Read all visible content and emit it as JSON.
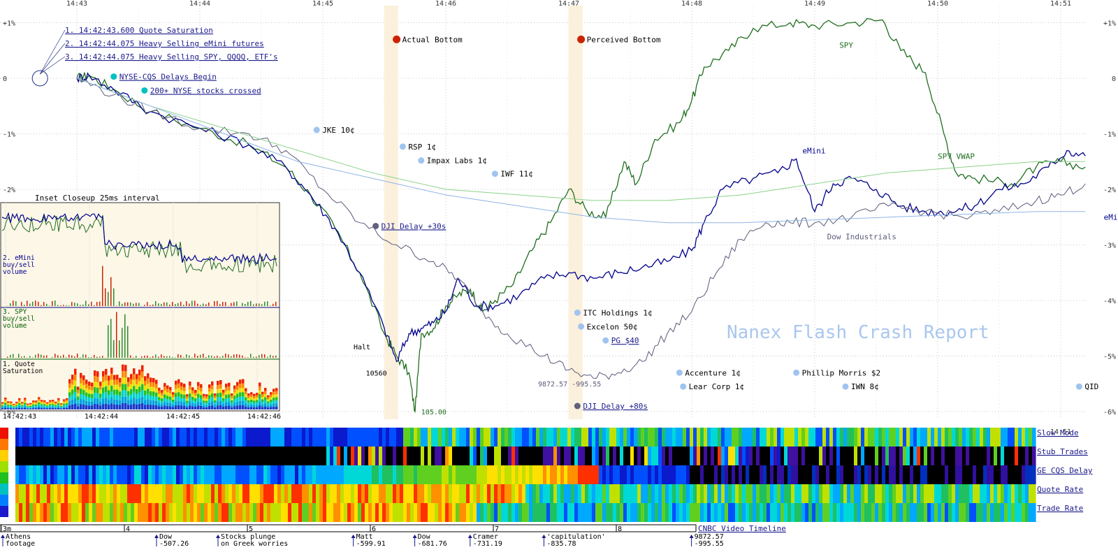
{
  "chart_data": {
    "type": "line",
    "title": "Nanex Flash Crash Report",
    "x_time_labels": [
      "14:43",
      "14:44",
      "14:45",
      "14:46",
      "14:47",
      "14:48",
      "14:49",
      "14:50",
      "14:51"
    ],
    "y_tick_labels": [
      "+1%",
      "0",
      "-1%",
      "-2%",
      "-3%",
      "-4%",
      "-5%",
      "-6%"
    ],
    "y_tick_values": [
      1,
      0,
      -1,
      -2,
      -3,
      -4,
      -5,
      -6
    ],
    "x_range_minutes": [
      0,
      8.2
    ],
    "ylim": [
      -6.1,
      1.3
    ],
    "grid": true,
    "series": [
      {
        "name": "SPY",
        "color": "#1f6e1f",
        "points": [
          [
            0,
            0
          ],
          [
            0.1,
            0.05
          ],
          [
            0.3,
            -0.2
          ],
          [
            0.6,
            -0.6
          ],
          [
            1.0,
            -0.9
          ],
          [
            1.4,
            -1.2
          ],
          [
            1.7,
            -1.6
          ],
          [
            1.9,
            -2.1
          ],
          [
            2.1,
            -2.7
          ],
          [
            2.3,
            -3.5
          ],
          [
            2.5,
            -4.6
          ],
          [
            2.6,
            -5.0
          ],
          [
            2.7,
            -5.3
          ],
          [
            2.75,
            -6.0
          ],
          [
            2.8,
            -4.6
          ],
          [
            2.9,
            -4.5
          ],
          [
            3.0,
            -4.1
          ],
          [
            3.1,
            -3.9
          ],
          [
            3.2,
            -3.8
          ],
          [
            3.3,
            -4.2
          ],
          [
            3.4,
            -4.0
          ],
          [
            3.55,
            -3.7
          ],
          [
            3.7,
            -3.1
          ],
          [
            3.85,
            -2.6
          ],
          [
            4.0,
            -2.0
          ],
          [
            4.15,
            -2.4
          ],
          [
            4.3,
            -2.5
          ],
          [
            4.45,
            -1.5
          ],
          [
            4.55,
            -1.9
          ],
          [
            4.7,
            -1.1
          ],
          [
            4.9,
            -0.8
          ],
          [
            5.0,
            -0.4
          ],
          [
            5.1,
            0.2
          ],
          [
            5.3,
            0.5
          ],
          [
            5.5,
            0.9
          ],
          [
            5.8,
            1.0
          ],
          [
            6.0,
            0.95
          ],
          [
            6.3,
            1.0
          ],
          [
            6.55,
            1.05
          ],
          [
            6.7,
            0.5
          ],
          [
            6.9,
            0.1
          ],
          [
            7.05,
            -1.0
          ],
          [
            7.15,
            -1.7
          ],
          [
            7.3,
            -1.8
          ],
          [
            7.6,
            -1.9
          ],
          [
            7.8,
            -1.6
          ],
          [
            8.0,
            -1.5
          ],
          [
            8.2,
            -1.6
          ]
        ]
      },
      {
        "name": "eMini",
        "color": "#00008b",
        "points": [
          [
            0,
            0
          ],
          [
            0.1,
            0.05
          ],
          [
            0.3,
            -0.2
          ],
          [
            0.6,
            -0.6
          ],
          [
            1.0,
            -0.9
          ],
          [
            1.4,
            -1.2
          ],
          [
            1.7,
            -1.6
          ],
          [
            1.9,
            -2.1
          ],
          [
            2.1,
            -2.7
          ],
          [
            2.3,
            -3.5
          ],
          [
            2.5,
            -4.5
          ],
          [
            2.6,
            -5.1
          ],
          [
            2.7,
            -4.6
          ],
          [
            2.8,
            -4.5
          ],
          [
            2.9,
            -4.4
          ],
          [
            3.0,
            -4.2
          ],
          [
            3.1,
            -3.6
          ],
          [
            3.25,
            -4.1
          ],
          [
            3.4,
            -4.1
          ],
          [
            3.6,
            -3.9
          ],
          [
            3.8,
            -3.6
          ],
          [
            4.0,
            -3.5
          ],
          [
            4.2,
            -3.6
          ],
          [
            4.4,
            -3.5
          ],
          [
            4.6,
            -3.4
          ],
          [
            4.8,
            -3.3
          ],
          [
            5.0,
            -3.1
          ],
          [
            5.1,
            -2.6
          ],
          [
            5.25,
            -2.0
          ],
          [
            5.5,
            -1.8
          ],
          [
            5.7,
            -1.7
          ],
          [
            5.85,
            -1.45
          ],
          [
            6.0,
            -2.4
          ],
          [
            6.15,
            -1.9
          ],
          [
            6.3,
            -1.8
          ],
          [
            6.5,
            -2.0
          ],
          [
            6.7,
            -2.3
          ],
          [
            6.9,
            -2.4
          ],
          [
            7.1,
            -2.4
          ],
          [
            7.3,
            -2.3
          ],
          [
            7.5,
            -2.0
          ],
          [
            7.7,
            -1.9
          ],
          [
            7.9,
            -1.6
          ],
          [
            8.05,
            -1.3
          ],
          [
            8.2,
            -1.4
          ]
        ]
      },
      {
        "name": "Dow Industrials",
        "color": "#5a5a7a",
        "points": [
          [
            0,
            0
          ],
          [
            0.3,
            -0.3
          ],
          [
            0.6,
            -0.6
          ],
          [
            1.0,
            -0.9
          ],
          [
            1.4,
            -1.0
          ],
          [
            1.7,
            -1.3
          ],
          [
            2.0,
            -2.0
          ],
          [
            2.3,
            -2.6
          ],
          [
            2.6,
            -3.0
          ],
          [
            2.9,
            -3.3
          ],
          [
            3.1,
            -3.6
          ],
          [
            3.3,
            -4.2
          ],
          [
            3.5,
            -4.6
          ],
          [
            3.8,
            -5.0
          ],
          [
            4.0,
            -5.25
          ],
          [
            4.2,
            -5.4
          ],
          [
            4.4,
            -5.3
          ],
          [
            4.6,
            -5.1
          ],
          [
            4.8,
            -4.6
          ],
          [
            5.0,
            -4.2
          ],
          [
            5.2,
            -3.5
          ],
          [
            5.4,
            -2.9
          ],
          [
            5.6,
            -2.6
          ],
          [
            5.8,
            -2.6
          ],
          [
            6.0,
            -2.6
          ],
          [
            6.3,
            -2.5
          ],
          [
            6.6,
            -2.3
          ],
          [
            6.9,
            -2.4
          ],
          [
            7.2,
            -2.5
          ],
          [
            7.5,
            -2.4
          ],
          [
            7.8,
            -2.2
          ],
          [
            8.0,
            -2.1
          ],
          [
            8.2,
            -1.9
          ]
        ]
      },
      {
        "name": "SPY VWAP",
        "color": "#8ad38a",
        "points": [
          [
            0,
            0
          ],
          [
            0.6,
            -0.5
          ],
          [
            1.2,
            -0.9
          ],
          [
            1.8,
            -1.3
          ],
          [
            2.4,
            -1.7
          ],
          [
            3.0,
            -2.0
          ],
          [
            3.6,
            -2.1
          ],
          [
            4.2,
            -2.2
          ],
          [
            4.8,
            -2.2
          ],
          [
            5.4,
            -2.1
          ],
          [
            6.0,
            -1.9
          ],
          [
            6.6,
            -1.7
          ],
          [
            7.2,
            -1.6
          ],
          [
            7.8,
            -1.5
          ],
          [
            8.2,
            -1.5
          ]
        ]
      },
      {
        "name": "",
        "color": "#8fb4e6",
        "points": [
          [
            0,
            0
          ],
          [
            0.6,
            -0.5
          ],
          [
            1.2,
            -1.0
          ],
          [
            1.8,
            -1.5
          ],
          [
            2.4,
            -1.8
          ],
          [
            3.0,
            -2.1
          ],
          [
            3.6,
            -2.3
          ],
          [
            4.2,
            -2.5
          ],
          [
            4.8,
            -2.6
          ],
          [
            5.4,
            -2.6
          ],
          [
            6.0,
            -2.55
          ],
          [
            6.6,
            -2.5
          ],
          [
            7.2,
            -2.45
          ],
          [
            7.8,
            -2.4
          ],
          [
            8.2,
            -2.4
          ]
        ]
      }
    ],
    "series_labels": [
      {
        "text": "SPY",
        "x": 6.2,
        "y": 0.55,
        "color": "#1f6e1f"
      },
      {
        "text": "eMini",
        "x": 5.9,
        "y": -1.35,
        "color": "#00008b"
      },
      {
        "text": "SPY VWAP",
        "x": 7.0,
        "y": -1.45,
        "color": "#1f6e1f"
      },
      {
        "text": "Dow Industrials",
        "x": 6.1,
        "y": -2.9,
        "color": "#5a5a7a"
      },
      {
        "text": "eMi",
        "x": 8.35,
        "y": -2.55,
        "color": "#00008b"
      }
    ],
    "bottom_bands": [
      {
        "x": 2.55,
        "label": "Actual Bottom"
      },
      {
        "x": 4.05,
        "label": "Perceived Bottom"
      }
    ],
    "event_links": [
      "1. 14:42:43.600 Quote Saturation",
      "2. 14:42:44.075 Heavy Selling eMini futures",
      "3. 14:42:44.075 Heavy Selling SPY, QQQQ, ETF's"
    ],
    "markers": [
      {
        "label": "Actual Bottom",
        "x": 2.6,
        "y": 0.7,
        "color": "#cc2200",
        "link": false
      },
      {
        "label": "Perceived Bottom",
        "x": 4.1,
        "y": 0.7,
        "color": "#cc2200",
        "link": false
      },
      {
        "label": "NYSE-CQS Delays Begin",
        "x": 0.3,
        "y": 0.03,
        "color": "#00c0c0",
        "link": true
      },
      {
        "label": "200+ NYSE stocks crossed",
        "x": 0.55,
        "y": -0.22,
        "color": "#00c0c0",
        "link": true
      },
      {
        "label": "JKE 10¢",
        "x": 1.95,
        "y": -0.93,
        "color": "#a0c4f0",
        "link": false
      },
      {
        "label": "RSP 1¢",
        "x": 2.65,
        "y": -1.23,
        "color": "#a0c4f0",
        "link": false
      },
      {
        "label": "Impax Labs 1¢",
        "x": 2.8,
        "y": -1.48,
        "color": "#a0c4f0",
        "link": false
      },
      {
        "label": "IWF 11¢",
        "x": 3.4,
        "y": -1.72,
        "color": "#a0c4f0",
        "link": false
      },
      {
        "label": "DJI Delay +30s",
        "x": 2.43,
        "y": -2.66,
        "color": "#606080",
        "link": true
      },
      {
        "label": "ITC Holdings 1¢",
        "x": 4.07,
        "y": -4.22,
        "color": "#a0c4f0",
        "link": false
      },
      {
        "label": "Excelon 50¢",
        "x": 4.1,
        "y": -4.47,
        "color": "#a0c4f0",
        "link": false
      },
      {
        "label": "PG $40",
        "x": 4.3,
        "y": -4.72,
        "color": "#a0c4f0",
        "link": true
      },
      {
        "label": "Accenture 1¢",
        "x": 4.9,
        "y": -5.3,
        "color": "#a0c4f0",
        "link": false
      },
      {
        "label": "Lear Corp 1¢",
        "x": 4.93,
        "y": -5.55,
        "color": "#a0c4f0",
        "link": false
      },
      {
        "label": "Phillip Morris $2",
        "x": 5.85,
        "y": -5.3,
        "color": "#a0c4f0",
        "link": false
      },
      {
        "label": "IWN 8¢",
        "x": 6.25,
        "y": -5.55,
        "color": "#a0c4f0",
        "link": false
      },
      {
        "label": "QID",
        "x": 8.15,
        "y": -5.55,
        "color": "#a0c4f0",
        "link": false
      },
      {
        "label": "DJI Delay +80s",
        "x": 4.07,
        "y": -5.9,
        "color": "#606080",
        "link": true
      }
    ],
    "annotations": [
      {
        "text": "Halt",
        "x": 2.25,
        "y": -4.88,
        "color": "#000000"
      },
      {
        "text": "10560",
        "x": 2.35,
        "y": -5.35,
        "color": "#000000"
      },
      {
        "text": "105.00",
        "x": 2.8,
        "y": -6.05,
        "color": "#1f6e1f"
      },
      {
        "text": "9872.57  -995.55",
        "x": 3.75,
        "y": -5.55,
        "color": "#5a5a7a"
      }
    ],
    "inset": {
      "title": "Inset Closeup 25ms interval",
      "x_labels": [
        "14:42:43",
        "14:42:44",
        "14:42:45",
        "14:42:46"
      ],
      "panel_labels": [
        "2. eMini\nbuy/sell\nvolume",
        "3. SPY\nbuy/sell\nvolume",
        "1. Quote\nSaturation"
      ]
    },
    "heat_rows": [
      "Slow Mode",
      "Stub Trades",
      "GE CQS Delay",
      "Quote Rate",
      "Trade Rate"
    ],
    "cnbc": {
      "title": "CNBC Video Timeline",
      "minute_marks": [
        "3m",
        "4",
        "5",
        "6",
        "7",
        "8"
      ],
      "events": [
        {
          "label": "Athens",
          "sub": "footage",
          "x": 0.0
        },
        {
          "label": "Dow",
          "sub": "-507.26",
          "x": 1.25
        },
        {
          "label": "Stocks plunge",
          "sub": "on Greek worries",
          "x": 1.75
        },
        {
          "label": "Matt",
          "sub": "-599.91",
          "x": 2.85
        },
        {
          "label": "Dow",
          "sub": "-681.76",
          "x": 3.35
        },
        {
          "label": "Cramer",
          "sub": "-731.19",
          "x": 3.8
        },
        {
          "label": "'capitulation'",
          "sub": "-835.78",
          "x": 4.4
        },
        {
          "label": "9872.57",
          "sub": "-995.55",
          "x": 5.6
        }
      ]
    }
  }
}
